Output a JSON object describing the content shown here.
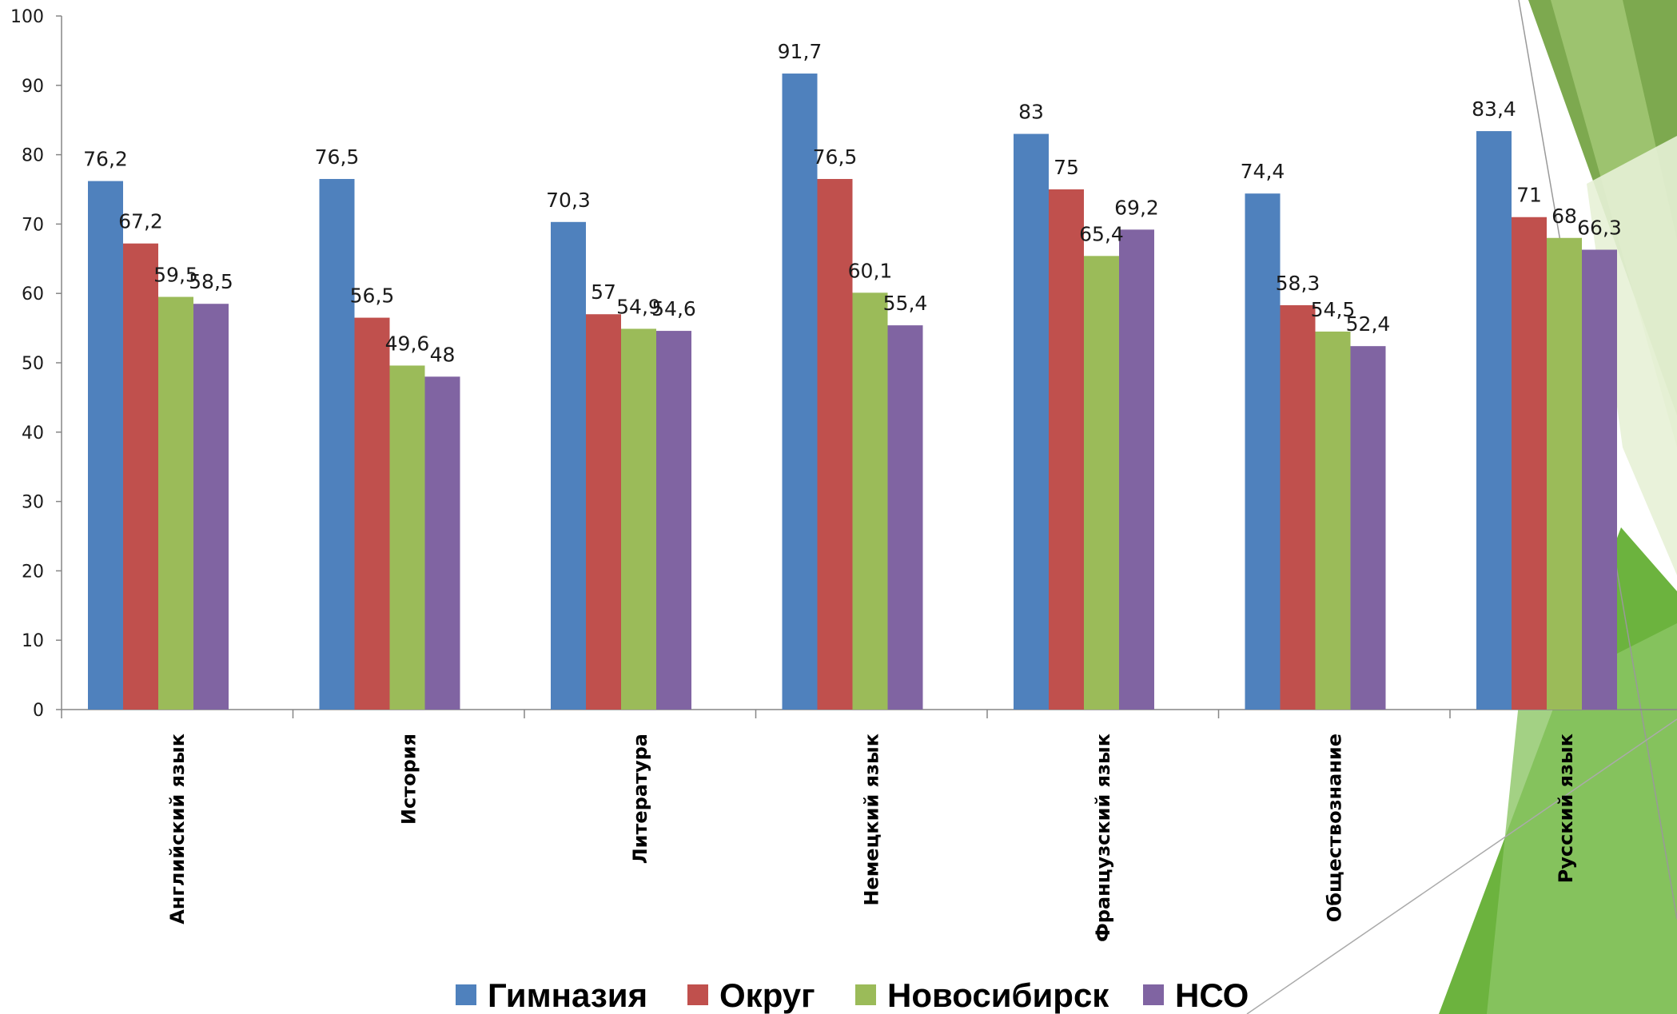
{
  "chart_data": {
    "type": "bar",
    "categories": [
      "Английский язык",
      "История",
      "Литература",
      "Немецкий язык",
      "Французский язык",
      "Обществознание",
      "Русский язык"
    ],
    "series": [
      {
        "name": "Гимназия",
        "color": "#4f81bd",
        "values": [
          76.2,
          76.5,
          70.3,
          91.7,
          83,
          74.4,
          83.4
        ],
        "labels": [
          "76,2",
          "76,5",
          "70,3",
          "91,7",
          "83",
          "74,4",
          "83,4"
        ]
      },
      {
        "name": "Округ",
        "color": "#c0504d",
        "values": [
          67.2,
          56.5,
          57,
          76.5,
          75,
          58.3,
          71
        ],
        "labels": [
          "67,2",
          "56,5",
          "57",
          "76,5",
          "75",
          "58,3",
          "71"
        ]
      },
      {
        "name": "Новосибирск",
        "color": "#9bbb59",
        "values": [
          59.5,
          49.6,
          54.9,
          60.1,
          65.4,
          54.5,
          68
        ],
        "labels": [
          "59,5",
          "49,6",
          "54,9",
          "60,1",
          "65,4",
          "54,5",
          "68"
        ]
      },
      {
        "name": "НСО",
        "color": "#8064a2",
        "values": [
          58.5,
          48,
          54.6,
          55.4,
          69.2,
          52.4,
          66.3
        ],
        "labels": [
          "58,5",
          "48",
          "54,6",
          "55,4",
          "69,2",
          "52,4",
          "66,3"
        ]
      }
    ],
    "yticks": [
      "0",
      "10",
      "20",
      "30",
      "40",
      "50",
      "60",
      "70",
      "80",
      "90",
      "100"
    ],
    "ylim": [
      0,
      100
    ],
    "grid": false,
    "legend": "bottom"
  }
}
